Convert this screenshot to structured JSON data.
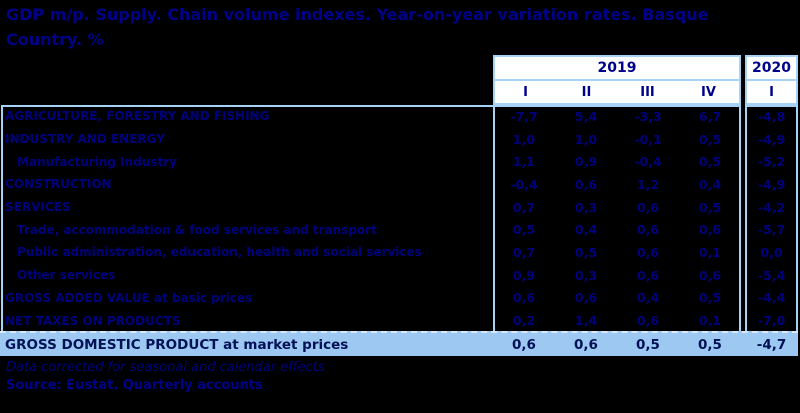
{
  "title": "GDP m/p. Supply. Chain volume indexes. Year-on-year variation rates. Basque Country. %",
  "table": {
    "year_groups": [
      {
        "label": "2019",
        "quarters": [
          "I",
          "II",
          "III",
          "IV"
        ]
      },
      {
        "label": "2020",
        "quarters": [
          "I"
        ]
      }
    ],
    "rows": [
      {
        "label": "AGRICULTURE, FORESTRY AND FISHING",
        "indent": false,
        "values": [
          "-7,7",
          "5,4",
          "-3,3",
          "6,7",
          "-4,8"
        ]
      },
      {
        "label": "INDUSTRY AND ENERGY",
        "indent": false,
        "values": [
          "1,0",
          "1,0",
          "-0,1",
          "0,5",
          "-4,9"
        ]
      },
      {
        "label": "Manufacturing Industry",
        "indent": true,
        "values": [
          "1,1",
          "0,9",
          "-0,4",
          "0,5",
          "-5,2"
        ]
      },
      {
        "label": "CONSTRUCTION",
        "indent": false,
        "values": [
          "-0,4",
          "0,6",
          "1,2",
          "0,4",
          "-4,9"
        ]
      },
      {
        "label": "SERVICES",
        "indent": false,
        "values": [
          "0,7",
          "0,3",
          "0,6",
          "0,5",
          "-4,2"
        ]
      },
      {
        "label": "Trade, accommodation & food services and transport",
        "indent": true,
        "values": [
          "0,5",
          "0,4",
          "0,6",
          "0,6",
          "-5,7"
        ]
      },
      {
        "label": "Public administration, education, health and social services",
        "indent": true,
        "values": [
          "0,7",
          "0,5",
          "0,6",
          "0,1",
          "0,0"
        ]
      },
      {
        "label": "Other services",
        "indent": true,
        "values": [
          "0,9",
          "0,3",
          "0,6",
          "0,6",
          "-5,4"
        ]
      },
      {
        "label": "GROSS ADDED VALUE at basic prices",
        "indent": false,
        "values": [
          "0,6",
          "0,6",
          "0,4",
          "0,5",
          "-4,4"
        ]
      },
      {
        "label": "NET TAXES ON PRODUCTS",
        "indent": false,
        "values": [
          "0,2",
          "1,4",
          "0,6",
          "0,1",
          "-7,0"
        ]
      }
    ],
    "total_row": {
      "label": "GROSS DOMESTIC PRODUCT at market prices",
      "values": [
        "0,6",
        "0,6",
        "0,5",
        "0,5",
        "-4,7"
      ]
    }
  },
  "footnote": "Data corrected for seasonal and calendar effects",
  "source": "Source: Eustat. Quarterly accounts",
  "colors": {
    "background": "#000000",
    "title_text": "#00008b",
    "body_text": "#00007e",
    "border": "#a6d2f5",
    "header_fill": "#ffffff",
    "total_fill": "#9cc8f2",
    "total_text": "#001155"
  }
}
